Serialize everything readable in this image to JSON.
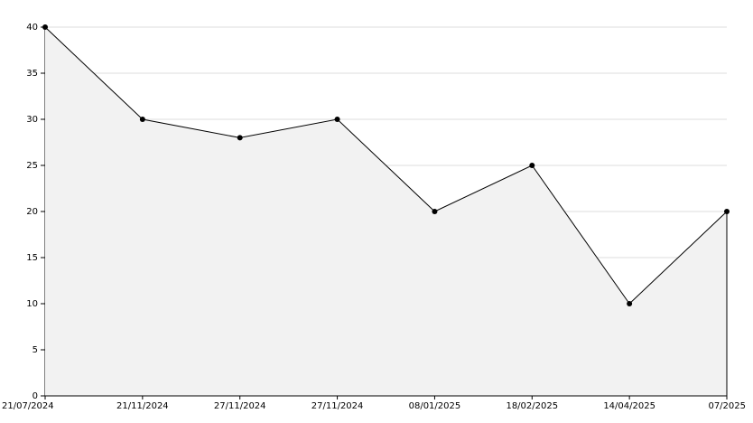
{
  "chart_data": {
    "type": "area",
    "categories": [
      "21/07/2024",
      "21/11/2024",
      "27/11/2024",
      "27/11/2024",
      "08/01/2025",
      "18/02/2025",
      "14/04/2025",
      "07/2025"
    ],
    "values": [
      40,
      30,
      28,
      30,
      20,
      25,
      10,
      20
    ],
    "color": "#000000",
    "fill": "#f2f2f2",
    "ylim": [
      0,
      40
    ],
    "yticks": [
      0,
      5,
      10,
      15,
      20,
      25,
      30,
      35,
      40
    ],
    "grid": true
  }
}
